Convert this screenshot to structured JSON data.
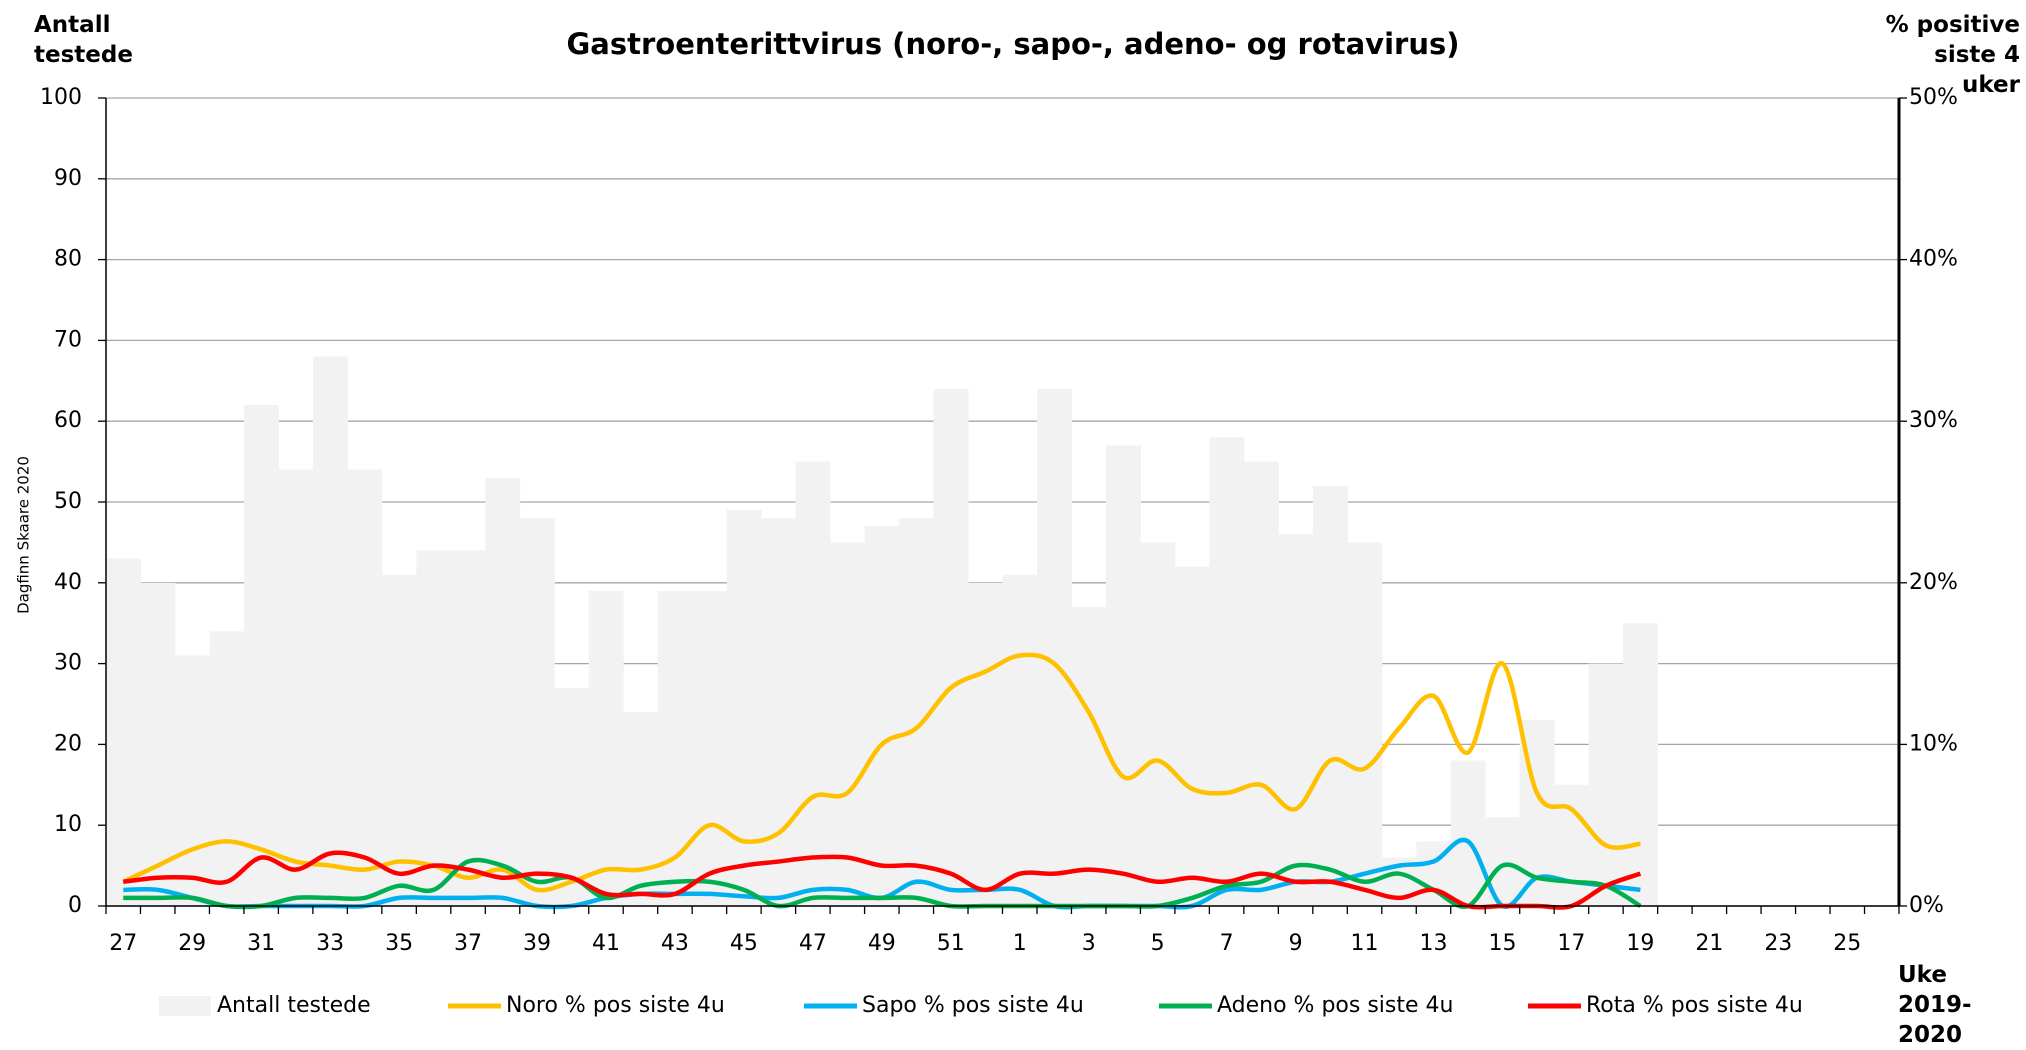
{
  "chart_data": {
    "type": "bar-line",
    "title": "Gastroenterittvirus (noro-, sapo-, adeno- og rotavirus)",
    "y_label": "Antall testede",
    "y2_label": "% positive siste 4 uker",
    "x_label": "Uke 2019-2020",
    "watermark": "Dagfinn Skaare 2020",
    "categories": [
      "27",
      null,
      "29",
      null,
      "31",
      null,
      "33",
      null,
      "35",
      null,
      "37",
      null,
      "39",
      null,
      "41",
      null,
      "43",
      null,
      "45",
      null,
      "47",
      null,
      "49",
      null,
      "51",
      null,
      "1",
      null,
      "3",
      null,
      "5",
      null,
      "7",
      null,
      "9",
      null,
      "11",
      null,
      "13",
      null,
      "15",
      null,
      "17",
      null,
      "19",
      null,
      "21",
      null,
      "23",
      null,
      "25",
      null
    ],
    "ylim": [
      0,
      100
    ],
    "yticks": [
      0,
      10,
      20,
      30,
      40,
      50,
      60,
      70,
      80,
      90,
      100
    ],
    "y2lim": [
      0,
      50
    ],
    "y2ticks": [
      {
        "value": 0,
        "label": "0%"
      },
      {
        "value": 10,
        "label": "10%"
      },
      {
        "value": 20,
        "label": "20%"
      },
      {
        "value": 30,
        "label": "30%"
      },
      {
        "value": 40,
        "label": "40%"
      },
      {
        "value": 50,
        "label": "50%"
      }
    ],
    "grid": true,
    "series": [
      {
        "name": "Antall testede",
        "type": "bar",
        "color": "#f2f2f2",
        "values": [
          43,
          40,
          31,
          34,
          62,
          54,
          68,
          54,
          41,
          44,
          44,
          53,
          48,
          27,
          39,
          24,
          39,
          39,
          49,
          48,
          55,
          45,
          47,
          48,
          64,
          40,
          41,
          64,
          37,
          57,
          45,
          42,
          58,
          55,
          46,
          52,
          45,
          6,
          8,
          18,
          11,
          23,
          15,
          30,
          35,
          null,
          null,
          null,
          null,
          null,
          null,
          null
        ]
      },
      {
        "name": "Noro % pos siste 4u",
        "type": "line",
        "axis": "y2",
        "color": "#ffc000",
        "values": [
          1.5,
          2.5,
          3.5,
          4,
          3.5,
          2.75,
          2.5,
          2.25,
          2.75,
          2.5,
          1.75,
          2.25,
          1,
          1.5,
          2.25,
          2.25,
          3,
          5,
          4,
          4.5,
          6.75,
          7,
          10,
          11,
          13.5,
          14.5,
          15.5,
          15,
          12,
          8,
          9,
          7.25,
          7,
          7.5,
          6,
          9,
          8.5,
          11,
          13,
          9.5,
          15,
          7,
          6,
          3.75,
          3.85,
          null,
          null,
          null,
          null,
          null,
          null,
          null
        ]
      },
      {
        "name": "Sapo % pos siste 4u",
        "type": "line",
        "axis": "y2",
        "color": "#00b0f0",
        "values": [
          1,
          1,
          0.5,
          0,
          0,
          0,
          0,
          0,
          0.5,
          0.5,
          0.5,
          0.5,
          0,
          0,
          0.5,
          0.75,
          0.75,
          0.75,
          0.6,
          0.5,
          1,
          1,
          0.5,
          1.5,
          1,
          1,
          1,
          0,
          0,
          0,
          0,
          0,
          1,
          1,
          1.5,
          1.5,
          2,
          2.5,
          2.75,
          4,
          0,
          1.75,
          1.5,
          1.25,
          1,
          null,
          null,
          null,
          null,
          null,
          null,
          null
        ]
      },
      {
        "name": "Adeno % pos siste 4u",
        "type": "line",
        "axis": "y2",
        "color": "#00b050",
        "values": [
          0.5,
          0.5,
          0.5,
          0,
          0,
          0.5,
          0.5,
          0.5,
          1.25,
          1,
          2.75,
          2.5,
          1.5,
          1.75,
          0.5,
          1.25,
          1.5,
          1.5,
          1,
          0,
          0.5,
          0.5,
          0.5,
          0.5,
          0,
          0,
          0,
          0,
          0,
          0,
          0,
          0.5,
          1.25,
          1.5,
          2.5,
          2.25,
          1.5,
          2,
          1,
          0,
          2.5,
          1.75,
          1.5,
          1.25,
          0,
          null,
          null,
          null,
          null,
          null,
          null,
          null
        ]
      },
      {
        "name": "Rota % pos siste 4u",
        "type": "line",
        "axis": "y2",
        "color": "#ff0000",
        "values": [
          1.5,
          1.75,
          1.75,
          1.5,
          3,
          2.25,
          3.25,
          3,
          2,
          2.5,
          2.25,
          1.75,
          2,
          1.75,
          0.75,
          0.75,
          0.75,
          2,
          2.5,
          2.75,
          3,
          3,
          2.5,
          2.5,
          2,
          1,
          2,
          2,
          2.25,
          2,
          1.5,
          1.75,
          1.5,
          2,
          1.5,
          1.5,
          1,
          0.5,
          1,
          0,
          0,
          0,
          0,
          1.25,
          2,
          null,
          null,
          null,
          null,
          null,
          null,
          null
        ]
      }
    ]
  }
}
